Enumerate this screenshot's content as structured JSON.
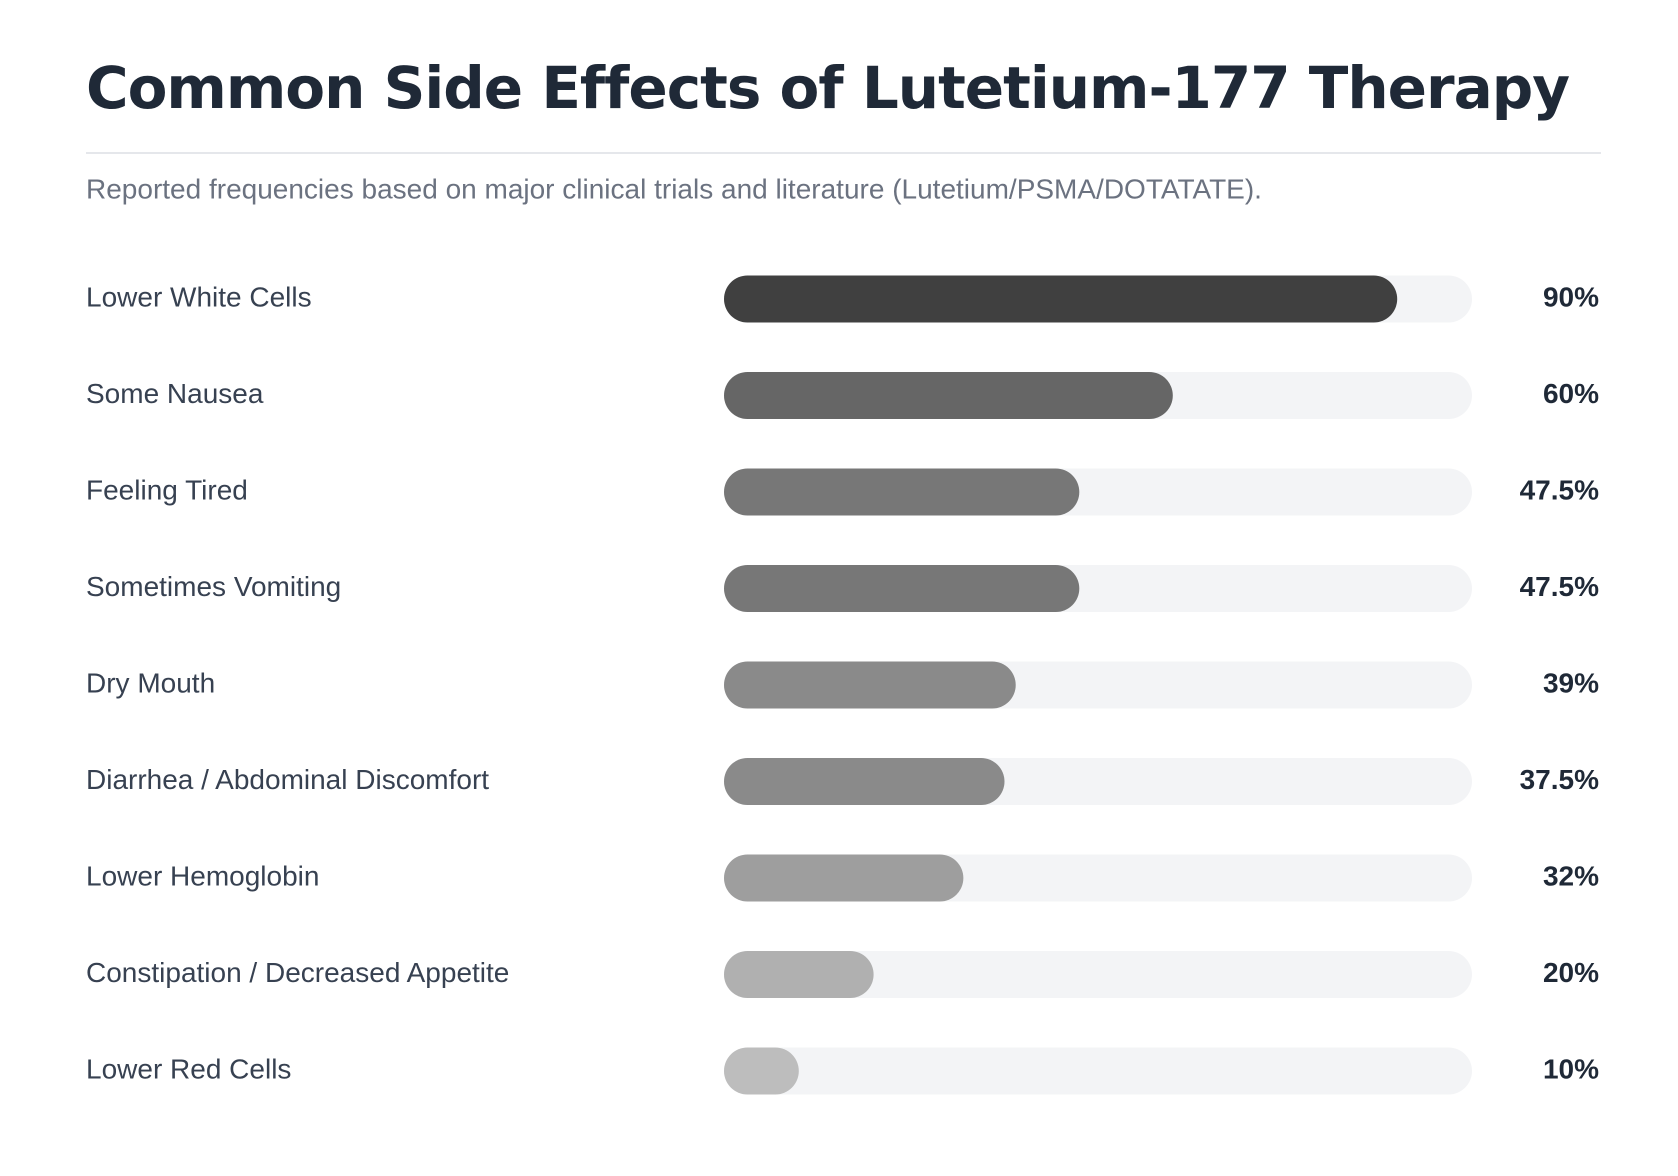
{
  "chart_data": {
    "type": "bar",
    "orientation": "horizontal",
    "title": "Common Side Effects of Lutetium-177 Therapy",
    "subtitle": "Reported frequencies based on major clinical trials and literature (Lutetium/PSMA/DOTATATE).",
    "categories": [
      "Lower White Cells",
      "Some Nausea",
      "Feeling Tired",
      "Sometimes Vomiting",
      "Dry Mouth",
      "Diarrhea / Abdominal Discomfort",
      "Lower Hemoglobin",
      "Constipation / Decreased Appetite",
      "Lower Red Cells"
    ],
    "values": [
      90,
      60,
      47.5,
      47.5,
      39,
      37.5,
      32,
      20,
      10
    ],
    "value_labels": [
      "90%",
      "60%",
      "47.5%",
      "47.5%",
      "39%",
      "37.5%",
      "32%",
      "20%",
      "10%"
    ],
    "colors": [
      "#404040",
      "#666666",
      "#777777",
      "#777777",
      "#8a8a8a",
      "#8a8a8a",
      "#9e9e9e",
      "#b0b0b0",
      "#bdbdbd"
    ],
    "track_color": "#f3f4f6",
    "xlim": [
      0,
      100
    ]
  }
}
